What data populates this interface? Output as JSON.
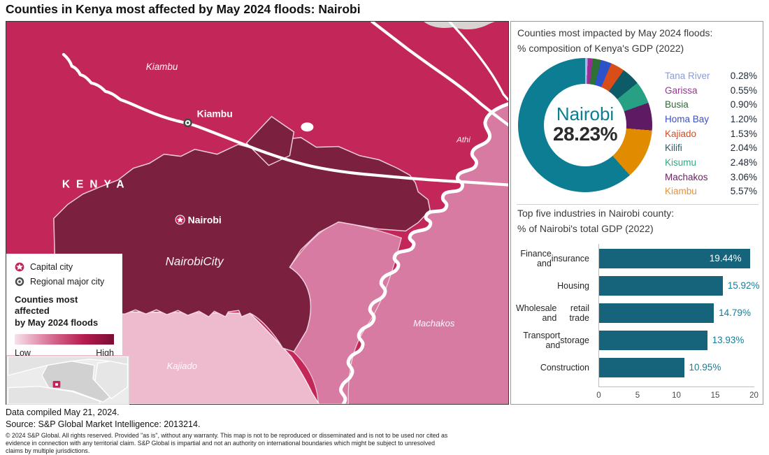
{
  "title": "Counties in Kenya most affected by May 2024 floods: Nairobi",
  "map": {
    "labels": {
      "country": "KENYA",
      "kiambu_county": "Kiambu",
      "kiambu_city": "Kiambu",
      "nairobi_capital": "Nairobi",
      "nairobi_city_area": "NairobiCity",
      "athi_river": "Athi",
      "machakos_county": "Machakos",
      "kajiado_county": "Kajiado"
    },
    "legend": {
      "capital": "Capital city",
      "regional": "Regional major city",
      "heading_line1": "Counties most affected",
      "heading_line2": "by May 2024 floods",
      "low": "Low",
      "high": "High"
    },
    "colors": {
      "flood_high": "#7c2040",
      "flood_mid_high": "#c3275a",
      "flood_mid_low": "#d77ba3",
      "flood_low": "#eebace",
      "capital_marker": "#c4245c"
    }
  },
  "chart_data": [
    {
      "type": "donut",
      "title": "Counties most impacted by May 2024 floods:",
      "subtitle": "% composition of Kenya's GDP (2022)",
      "center": {
        "label": "Nairobi",
        "value": "28.23%"
      },
      "value_suffix": "%",
      "legend_position": "right",
      "segments": [
        {
          "name": "Tana River",
          "value": 0.28,
          "color": "#aab3e3",
          "label_color": "#8a9bd8"
        },
        {
          "name": "Garissa",
          "value": 0.55,
          "color": "#992e96",
          "label_color": "#9c3195"
        },
        {
          "name": "Busia",
          "value": 0.9,
          "color": "#2e7134",
          "label_color": "#2e6b35"
        },
        {
          "name": "Homa Bay",
          "value": 1.2,
          "color": "#2d51c8",
          "label_color": "#3b50c1"
        },
        {
          "name": "Kajiado",
          "value": 1.53,
          "color": "#d94d18",
          "label_color": "#d74a1e"
        },
        {
          "name": "Kilifi",
          "value": 2.04,
          "color": "#0d5b66",
          "label_color": "#315a64"
        },
        {
          "name": "Kisumu",
          "value": 2.48,
          "color": "#27a083",
          "label_color": "#35a584"
        },
        {
          "name": "Machakos",
          "value": 3.06,
          "color": "#5e1b63",
          "label_color": "#6d2063"
        },
        {
          "name": "Kiambu",
          "value": 5.57,
          "color": "#e18c00",
          "label_color": "#e78f3c"
        },
        {
          "name": "Nairobi",
          "value": 28.23,
          "color": "#0c7d93",
          "label_color": "#0c7d93"
        }
      ]
    },
    {
      "type": "bar",
      "title": "Top five industries in Nairobi county:",
      "subtitle": "% of Nairobi's total GDP (2022)",
      "categories": [
        "Finance and insurance",
        "Housing",
        "Wholesale and retail trade",
        "Transport and storage",
        "Construction"
      ],
      "category_lines": [
        [
          "Finance and",
          "insurance"
        ],
        [
          "Housing"
        ],
        [
          "Wholesale and",
          "retail trade"
        ],
        [
          "Transport and",
          "storage"
        ],
        [
          "Construction"
        ]
      ],
      "values": [
        19.44,
        15.92,
        14.79,
        13.93,
        10.95
      ],
      "value_labels": [
        "19.44%",
        "15.92%",
        "14.79%",
        "13.93%",
        "10.95%"
      ],
      "xlim": [
        0,
        20
      ],
      "x_ticks": [
        0,
        5,
        10,
        15,
        20
      ],
      "bar_color": "#15647c",
      "grid": false
    }
  ],
  "footer": {
    "line1": "Data compiled May 21, 2024.",
    "line2": "Source: S&P Global Market Intelligence: 2013214.",
    "disclaimer": "© 2024 S&P Global. All rights reserved. Provided \"as is\", without any warranty. This map is not to be reproduced or disseminated and is not to be used nor cited as evidence in connection with any territorial claim. S&P Global is impartial and not an authority on international boundaries which might be subject to unresolved claims by multiple jurisdictions."
  }
}
